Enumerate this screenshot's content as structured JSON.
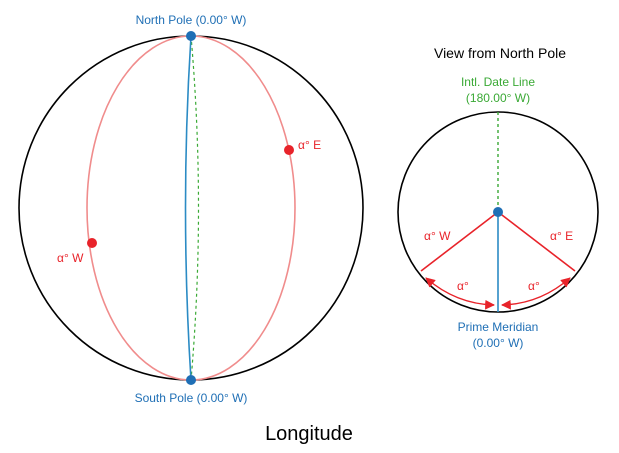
{
  "colors": {
    "outline": "#000000",
    "meridian_blue": "#2b8bc4",
    "meridian_red": "#f08c8c",
    "point_red": "#e8232a",
    "point_blue": "#1f6fb5",
    "date_line_green": "#3aa935",
    "label_blue": "#1f6fb5",
    "label_red": "#e8232a",
    "label_green": "#3aa935"
  },
  "globe": {
    "north_pole_label": "North Pole (0.00° W)",
    "south_pole_label": "South Pole (0.00° W)",
    "east_point_label": "α° E",
    "west_point_label": "α° W"
  },
  "polar_view": {
    "title": "View from North Pole",
    "date_line_label_1": "Intl. Date Line",
    "date_line_label_2": "(180.00° W)",
    "west_label": "α° W",
    "east_label": "α° E",
    "angle_left_label": "α°",
    "angle_right_label": "α°",
    "prime_meridian_label_1": "Prime Meridian",
    "prime_meridian_label_2": "(0.00° W)"
  },
  "caption": "Longitude"
}
